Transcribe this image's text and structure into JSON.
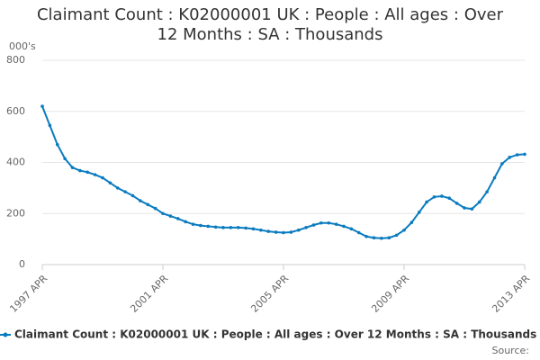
{
  "chart_data": {
    "type": "line",
    "title": "Claimant Count : K02000001 UK : People : All ages : Over 12 Months : SA : Thousands",
    "y_label": "000's",
    "source": "Source:",
    "categories": [
      "1997 APR",
      null,
      null,
      null,
      null,
      null,
      null,
      null,
      null,
      null,
      null,
      null,
      null,
      null,
      null,
      null,
      "2001 APR",
      null,
      null,
      null,
      null,
      null,
      null,
      null,
      null,
      null,
      null,
      null,
      null,
      null,
      null,
      null,
      "2005 APR",
      null,
      null,
      null,
      null,
      null,
      null,
      null,
      null,
      null,
      null,
      null,
      null,
      null,
      null,
      null,
      "2009 APR",
      null,
      null,
      null,
      null,
      null,
      null,
      null,
      null,
      null,
      null,
      null,
      null,
      null,
      null,
      null,
      "2013 APR"
    ],
    "series": [
      {
        "name": "Claimant Count : K02000001 UK : People : All ages : Over 12 Months : SA : Thousands",
        "color": "#0a7bbf",
        "values": [
          620,
          545,
          470,
          415,
          380,
          368,
          362,
          352,
          340,
          320,
          300,
          285,
          270,
          250,
          235,
          220,
          200,
          190,
          180,
          168,
          158,
          153,
          150,
          147,
          145,
          145,
          145,
          143,
          140,
          135,
          130,
          127,
          125,
          127,
          135,
          145,
          155,
          163,
          163,
          158,
          150,
          140,
          125,
          110,
          105,
          103,
          105,
          115,
          135,
          165,
          205,
          245,
          265,
          268,
          260,
          240,
          222,
          218,
          245,
          285,
          340,
          395,
          420,
          430,
          432
        ]
      }
    ],
    "ylim": [
      0,
      800
    ],
    "yticks": [
      0,
      200,
      400,
      600,
      800
    ],
    "grid": true
  }
}
